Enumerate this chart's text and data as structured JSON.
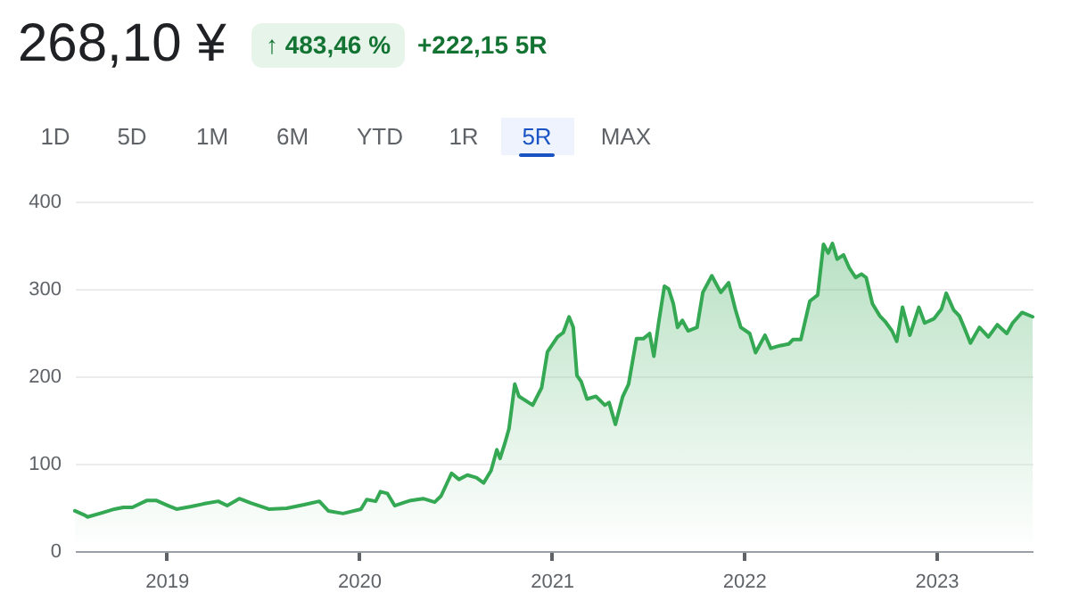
{
  "chart_data": {
    "type": "area",
    "title": "268,10 ¥",
    "annotations": [
      "↑ 483,46 %",
      "+222,15 5R",
      "1D",
      "5D",
      "1M",
      "6M",
      "YTD",
      "1R",
      "5R",
      "MAX"
    ],
    "x": [
      "2018-07-11",
      "2018-07-30",
      "2018-08-04",
      "2018-09-02",
      "2018-09-24",
      "2018-10-11",
      "2018-10-28",
      "2018-11-25",
      "2018-12-12",
      "2019-01-04",
      "2019-01-20",
      "2019-02-17",
      "2019-03-12",
      "2019-04-09",
      "2019-04-26",
      "2019-05-19",
      "2019-06-10",
      "2019-07-14",
      "2019-08-17",
      "2019-09-19",
      "2019-10-18",
      "2019-11-04",
      "2019-12-02",
      "2020-01-05",
      "2020-01-16",
      "2020-02-02",
      "2020-02-11",
      "2020-02-24",
      "2020-03-09",
      "2020-03-29",
      "2020-04-09",
      "2020-05-02",
      "2020-05-24",
      "2020-06-05",
      "2020-06-25",
      "2020-07-09",
      "2020-07-25",
      "2020-08-11",
      "2020-08-25",
      "2020-09-08",
      "2020-09-19",
      "2020-09-25",
      "2020-10-04",
      "2020-10-12",
      "2020-10-23",
      "2020-10-31",
      "2020-11-26",
      "2020-12-13",
      "2020-12-24",
      "2021-01-12",
      "2021-01-23",
      "2021-02-03",
      "2021-02-11",
      "2021-02-18",
      "2021-02-26",
      "2021-03-09",
      "2021-03-26",
      "2021-04-12",
      "2021-04-20",
      "2021-05-02",
      "2021-05-16",
      "2021-05-27",
      "2021-06-11",
      "2021-06-24",
      "2021-07-06",
      "2021-07-14",
      "2021-07-23",
      "2021-08-03",
      "2021-08-11",
      "2021-08-20",
      "2021-08-28",
      "2021-09-06",
      "2021-09-17",
      "2021-10-04",
      "2021-10-15",
      "2021-11-01",
      "2021-11-18",
      "2021-12-03",
      "2021-12-16",
      "2021-12-26",
      "2022-01-12",
      "2022-01-23",
      "2022-02-10",
      "2022-02-21",
      "2022-03-10",
      "2022-03-27",
      "2022-04-04",
      "2022-04-19",
      "2022-05-06",
      "2022-05-21",
      "2022-06-01",
      "2022-06-10",
      "2022-06-18",
      "2022-06-27",
      "2022-07-09",
      "2022-07-20",
      "2022-08-01",
      "2022-08-12",
      "2022-08-21",
      "2022-09-02",
      "2022-09-16",
      "2022-09-27",
      "2022-10-09",
      "2022-10-18",
      "2022-10-29",
      "2022-11-12",
      "2022-11-29",
      "2022-12-10",
      "2022-12-28",
      "2023-01-11",
      "2023-01-20",
      "2023-02-03",
      "2023-02-14",
      "2023-02-23",
      "2023-03-07",
      "2023-03-24",
      "2023-04-10",
      "2023-04-27",
      "2023-05-15",
      "2023-05-26",
      "2023-06-13",
      "2023-07-03"
    ],
    "series": [
      {
        "color": "#34a853",
        "values": [
          46,
          41,
          39,
          44,
          48,
          50,
          50,
          58,
          58,
          52,
          48,
          51,
          54,
          57,
          52,
          60,
          55,
          48,
          49,
          53,
          57,
          46,
          43,
          48,
          59,
          57,
          68,
          66,
          52,
          56,
          58,
          60,
          56,
          63,
          89,
          82,
          87,
          84,
          78,
          92,
          116,
          106,
          123,
          140,
          191,
          177,
          167,
          187,
          228,
          245,
          250,
          268,
          256,
          201,
          194,
          174,
          177,
          167,
          170,
          145,
          177,
          191,
          243,
          243,
          249,
          223,
          261,
          303,
          300,
          283,
          256,
          264,
          252,
          256,
          296,
          315,
          296,
          307,
          276,
          256,
          249,
          227,
          247,
          232,
          235,
          237,
          242,
          242,
          286,
          293,
          351,
          341,
          352,
          334,
          339,
          324,
          313,
          317,
          313,
          283,
          269,
          262,
          252,
          240,
          279,
          247,
          279,
          261,
          266,
          277,
          295,
          276,
          269,
          256,
          238,
          256,
          245,
          259,
          249,
          261,
          273,
          268.1
        ]
      }
    ],
    "xlim": [
      "2018-07-11",
      "2023-07-03"
    ],
    "xticks": [
      {
        "value": "2019-01-01",
        "label": "2019"
      },
      {
        "value": "2020-01-01",
        "label": "2020"
      },
      {
        "value": "2021-01-01",
        "label": "2021"
      },
      {
        "value": "2022-01-01",
        "label": "2022"
      },
      {
        "value": "2023-01-01",
        "label": "2023"
      }
    ],
    "ylim": [
      0,
      400
    ],
    "yticks": [
      0,
      100,
      200,
      300,
      400
    ],
    "grid": "y",
    "marker": "none",
    "line_style": "solid"
  }
}
